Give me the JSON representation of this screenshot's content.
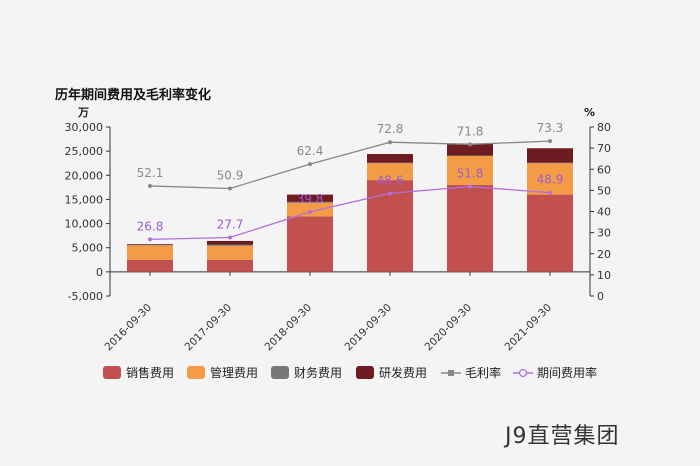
{
  "chart_data": {
    "type": "bar",
    "title": "历年期间费用及毛利率变化",
    "left_axis_unit": "万",
    "right_axis_unit": "%",
    "categories": [
      "2016-09-30",
      "2017-09-30",
      "2018-09-30",
      "2019-09-30",
      "2020-09-30",
      "2021-09-30"
    ],
    "ylim_left": [
      -5000,
      30000
    ],
    "yticks_left": [
      "-5,000",
      "0",
      "5,000",
      "10,000",
      "15,000",
      "20,000",
      "25,000",
      "30,000"
    ],
    "ylim_right": [
      0,
      80
    ],
    "yticks_right": [
      "0",
      "10",
      "20",
      "30",
      "40",
      "50",
      "60",
      "70",
      "80"
    ],
    "series": [
      {
        "name": "销售费用",
        "kind": "bar",
        "color": "#c1504f",
        "values": [
          2500,
          2500,
          11500,
          19000,
          18000,
          16000
        ]
      },
      {
        "name": "管理费用",
        "kind": "bar",
        "color": "#f39c45",
        "values": [
          3000,
          2900,
          2800,
          3500,
          6000,
          6500
        ]
      },
      {
        "name": "财务费用",
        "kind": "bar",
        "color": "#777777",
        "values": [
          100,
          200,
          200,
          100,
          100,
          100
        ]
      },
      {
        "name": "研发费用",
        "kind": "bar",
        "color": "#6e1c22",
        "values": [
          150,
          800,
          1500,
          1800,
          2500,
          3000
        ]
      },
      {
        "name": "毛利率",
        "kind": "line",
        "axis": "right",
        "color": "#888888",
        "values": [
          52.1,
          50.9,
          62.4,
          72.8,
          71.8,
          73.3
        ]
      },
      {
        "name": "期间费用率",
        "kind": "line",
        "axis": "right",
        "color": "#b070dd",
        "values": [
          26.8,
          27.7,
          39.8,
          48.6,
          51.8,
          48.9
        ]
      }
    ],
    "gross_margin_labels": [
      "52.1",
      "50.9",
      "62.4",
      "72.8",
      "71.8",
      "73.3"
    ],
    "expense_ratio_labels": [
      "26.8",
      "27.7",
      "39.8",
      "48.6",
      "51.8",
      "48.9"
    ],
    "legend_position": "bottom",
    "grid": false
  },
  "watermark": "J9直营集团"
}
